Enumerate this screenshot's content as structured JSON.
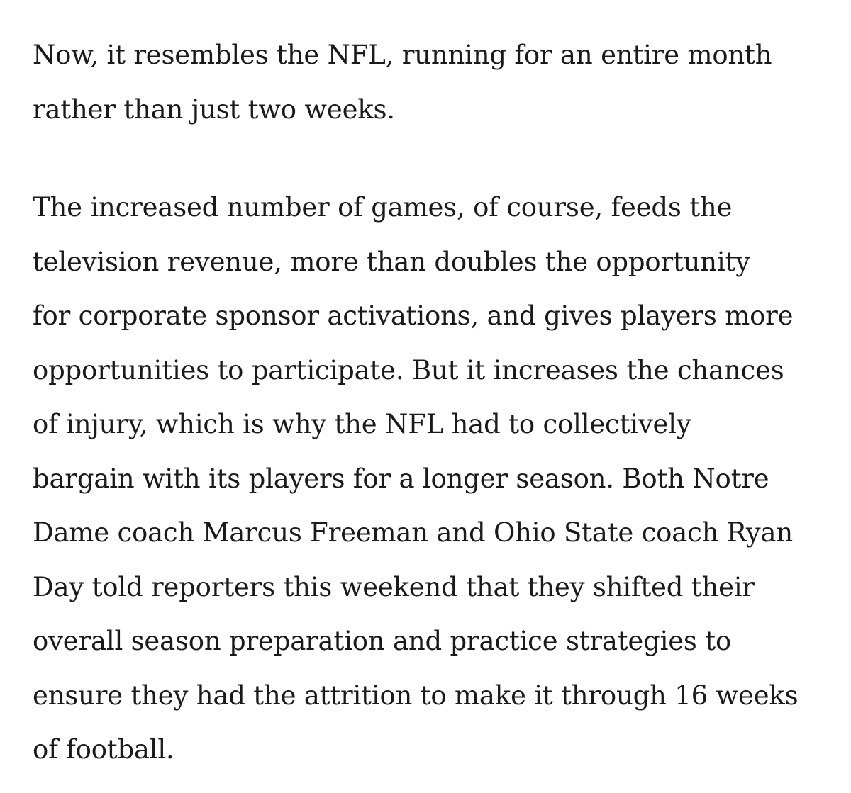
{
  "article": {
    "paragraphs": [
      {
        "lines": [
          "Now, it resembles the NFL, running for an entire month",
          "rather than just two weeks."
        ]
      },
      {
        "lines": [
          "The increased number of games, of course, feeds the",
          "television revenue, more than doubles the opportunity",
          "for corporate sponsor activations, and gives players more",
          "opportunities to participate. But it increases the chances",
          "of injury, which is why the NFL had to collectively",
          "bargain with its players for a longer season. Both Notre",
          "Dame coach Marcus Freeman and Ohio State coach Ryan",
          "Day told reporters this weekend that they shifted their",
          "overall season preparation and practice strategies to",
          "ensure they had the attrition to make it through 16 weeks",
          "of football."
        ]
      }
    ]
  }
}
